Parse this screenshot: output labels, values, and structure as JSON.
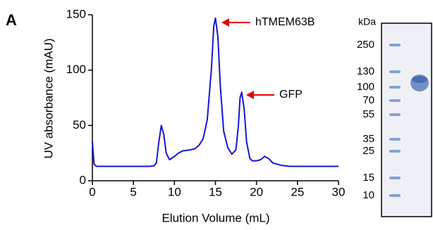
{
  "panel_label": "A",
  "chart_data": {
    "type": "line",
    "xlabel": "Elution Volume (mL)",
    "ylabel": "UV absorbance (mAU)",
    "color": "#1515d6",
    "x": [
      0,
      0.2,
      0.5,
      1,
      2,
      3,
      4,
      5,
      6,
      7,
      7.5,
      7.8,
      8.1,
      8.4,
      8.7,
      9.0,
      9.4,
      10,
      10.5,
      11,
      12,
      12.5,
      13,
      13.5,
      14,
      14.5,
      14.8,
      15,
      15.3,
      15.6,
      16,
      16.5,
      17,
      17.5,
      17.8,
      18,
      18.2,
      18.5,
      18.8,
      19.2,
      19.5,
      20,
      20.5,
      21,
      21.5,
      22,
      23,
      24,
      25,
      26,
      27,
      28,
      29,
      30
    ],
    "values": [
      36,
      15,
      13,
      13,
      13,
      13,
      13,
      13,
      13,
      13,
      13.5,
      16,
      35,
      50,
      42,
      25,
      19,
      22,
      25,
      27,
      28,
      29,
      32,
      38,
      55,
      100,
      140,
      147,
      130,
      85,
      45,
      30,
      24,
      28,
      50,
      75,
      80,
      65,
      35,
      20,
      18,
      18,
      19,
      22,
      20,
      16,
      14,
      13,
      13,
      13,
      13,
      13,
      13,
      13
    ],
    "xlim": [
      0,
      30
    ],
    "xticks": [
      0,
      5,
      10,
      15,
      20,
      25,
      30
    ],
    "ylim": [
      0,
      150
    ],
    "yticks": [
      0,
      50,
      100,
      150
    ],
    "annotations": [
      "hTMEM63B",
      "GFP"
    ]
  },
  "gel": {
    "unit": "kDa",
    "markers": [
      250,
      130,
      100,
      70,
      55,
      35,
      25,
      15,
      10
    ]
  }
}
